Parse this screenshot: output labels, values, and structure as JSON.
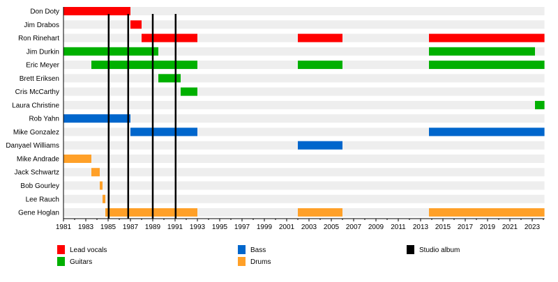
{
  "chart_data": {
    "type": "timeline",
    "xlim": [
      1981,
      2024.1
    ],
    "tick_labels": [
      "1981",
      "1983",
      "1985",
      "1987",
      "1989",
      "1991",
      "1993",
      "1995",
      "1997",
      "1999",
      "2001",
      "2003",
      "2005",
      "2007",
      "2009",
      "2011",
      "2013",
      "2015",
      "2017",
      "2019",
      "2021",
      "2023"
    ],
    "roles": {
      "vocals": {
        "label": "Lead vocals",
        "color": "#ff0000"
      },
      "guitars": {
        "label": "Guitars",
        "color": "#00b000"
      },
      "bass": {
        "label": "Bass",
        "color": "#0066cc"
      },
      "drums": {
        "label": "Drums",
        "color": "#ffa028"
      },
      "album": {
        "label": "Studio album",
        "color": "#000000"
      }
    },
    "members": [
      {
        "name": "Don Doty",
        "role": "vocals",
        "periods": [
          [
            1981,
            1987
          ]
        ]
      },
      {
        "name": "Jim Drabos",
        "role": "vocals",
        "periods": [
          [
            1987,
            1988
          ]
        ]
      },
      {
        "name": "Ron Rinehart",
        "role": "vocals",
        "periods": [
          [
            1988,
            1993
          ],
          [
            2002,
            2006
          ],
          [
            2013.75,
            2024.1
          ]
        ]
      },
      {
        "name": "Jim Durkin",
        "role": "guitars",
        "periods": [
          [
            1981,
            1989.5
          ],
          [
            2013.75,
            2023.25
          ]
        ]
      },
      {
        "name": "Eric Meyer",
        "role": "guitars",
        "periods": [
          [
            1983.5,
            1993
          ],
          [
            2002,
            2006
          ],
          [
            2013.75,
            2024.1
          ]
        ]
      },
      {
        "name": "Brett Eriksen",
        "role": "guitars",
        "periods": [
          [
            1989.5,
            1991.5
          ]
        ]
      },
      {
        "name": "Cris McCarthy",
        "role": "guitars",
        "periods": [
          [
            1991.5,
            1993
          ]
        ]
      },
      {
        "name": "Laura Christine",
        "role": "guitars",
        "periods": [
          [
            2023.25,
            2024.1
          ]
        ]
      },
      {
        "name": "Rob Yahn",
        "role": "bass",
        "periods": [
          [
            1981,
            1987
          ]
        ]
      },
      {
        "name": "Mike Gonzalez",
        "role": "bass",
        "periods": [
          [
            1987,
            1993
          ],
          [
            2013.75,
            2024.1
          ]
        ]
      },
      {
        "name": "Danyael Williams",
        "role": "bass",
        "periods": [
          [
            2002,
            2006
          ]
        ]
      },
      {
        "name": "Mike Andrade",
        "role": "drums",
        "periods": [
          [
            1981,
            1983.5
          ]
        ]
      },
      {
        "name": "Jack Schwartz",
        "role": "drums",
        "periods": [
          [
            1983.5,
            1984.25
          ]
        ]
      },
      {
        "name": "Bob Gourley",
        "role": "drums",
        "periods": [
          [
            1984.25,
            1984.5
          ]
        ]
      },
      {
        "name": "Lee Rauch",
        "role": "drums",
        "periods": [
          [
            1984.5,
            1984.75
          ]
        ]
      },
      {
        "name": "Gene Hoglan",
        "role": "drums",
        "periods": [
          [
            1984.75,
            1993
          ],
          [
            2002,
            2006
          ],
          [
            2013.75,
            2024.1
          ]
        ]
      }
    ],
    "albums": [
      1985.05,
      1986.8,
      1989.0,
      1991.05
    ],
    "legend": [
      {
        "key": "vocals",
        "label": "Lead vocals"
      },
      {
        "key": "guitars",
        "label": "Guitars"
      },
      {
        "key": "bass",
        "label": "Bass"
      },
      {
        "key": "drums",
        "label": "Drums"
      },
      {
        "key": "album",
        "label": "Studio album"
      }
    ],
    "legend_position": "bottom",
    "background_band_color": "#eeeeee"
  }
}
